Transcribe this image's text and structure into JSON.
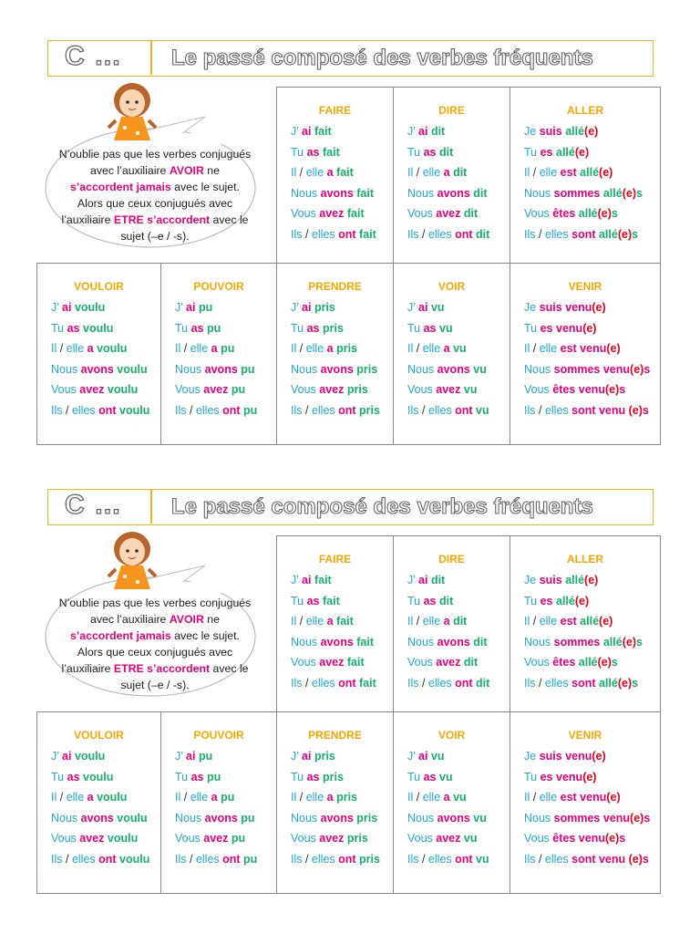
{
  "header": {
    "letter": "C …",
    "title": "Le passé composé des verbes fréquents"
  },
  "note": [
    [
      "N’oublie pas que les verbes conjugués avec l’auxiliaire ",
      "t"
    ],
    [
      "AVOIR",
      "a"
    ],
    [
      " ne ",
      "t"
    ],
    [
      "s’accordent jamais",
      "a"
    ],
    [
      " avec le sujet. Alors que ceux conjugués avec l’auxiliaire ",
      "t"
    ],
    [
      "ETRE s’accordent",
      "a"
    ],
    [
      " avec le sujet (–e / -s).",
      "t"
    ]
  ],
  "verbs": [
    {
      "name": "FAIRE",
      "lines": [
        [
          [
            "J’ ",
            "p"
          ],
          [
            "ai ",
            "a"
          ],
          [
            "fait",
            "v"
          ]
        ],
        [
          [
            "Tu ",
            "p"
          ],
          [
            "as ",
            "a"
          ],
          [
            "fait",
            "v"
          ]
        ],
        [
          [
            "Il ",
            "p"
          ],
          [
            "/ ",
            "k"
          ],
          [
            "elle ",
            "p"
          ],
          [
            "a ",
            "a"
          ],
          [
            "fait",
            "v"
          ]
        ],
        [
          [
            "Nous ",
            "p"
          ],
          [
            "avons ",
            "a"
          ],
          [
            "fait",
            "v"
          ]
        ],
        [
          [
            "Vous ",
            "p"
          ],
          [
            "avez ",
            "a"
          ],
          [
            "fait",
            "v"
          ]
        ],
        [
          [
            "Ils ",
            "p"
          ],
          [
            "/ ",
            "k"
          ],
          [
            "elles ",
            "p"
          ],
          [
            "ont ",
            "a"
          ],
          [
            "fait",
            "v"
          ]
        ]
      ]
    },
    {
      "name": "DIRE",
      "lines": [
        [
          [
            "J’ ",
            "p"
          ],
          [
            "ai ",
            "a"
          ],
          [
            "dit",
            "v"
          ]
        ],
        [
          [
            "Tu ",
            "p"
          ],
          [
            "as ",
            "a"
          ],
          [
            "dit",
            "v"
          ]
        ],
        [
          [
            "Il ",
            "p"
          ],
          [
            "/ ",
            "k"
          ],
          [
            "elle ",
            "p"
          ],
          [
            "a ",
            "a"
          ],
          [
            "dit",
            "v"
          ]
        ],
        [
          [
            "Nous ",
            "p"
          ],
          [
            "avons ",
            "a"
          ],
          [
            "dit",
            "v"
          ]
        ],
        [
          [
            "Vous ",
            "p"
          ],
          [
            "avez ",
            "a"
          ],
          [
            "dit",
            "v"
          ]
        ],
        [
          [
            "Ils ",
            "p"
          ],
          [
            "/ ",
            "k"
          ],
          [
            "elles ",
            "p"
          ],
          [
            "ont ",
            "a"
          ],
          [
            "dit",
            "v"
          ]
        ]
      ]
    },
    {
      "name": "ALLER",
      "lines": [
        [
          [
            "Je ",
            "p"
          ],
          [
            "suis ",
            "a"
          ],
          [
            "allé",
            "v"
          ],
          [
            "(e)",
            "e"
          ]
        ],
        [
          [
            "Tu ",
            "p"
          ],
          [
            "es ",
            "a"
          ],
          [
            "allé",
            "v"
          ],
          [
            "(e)",
            "e"
          ]
        ],
        [
          [
            "Il ",
            "p"
          ],
          [
            "/ ",
            "k"
          ],
          [
            "elle ",
            "p"
          ],
          [
            "est ",
            "a"
          ],
          [
            "allé",
            "v"
          ],
          [
            "(e)",
            "e"
          ]
        ],
        [
          [
            "Nous ",
            "p"
          ],
          [
            "sommes ",
            "a"
          ],
          [
            "allé",
            "v"
          ],
          [
            "(e)",
            "e"
          ],
          [
            "s",
            "v"
          ]
        ],
        [
          [
            "Vous ",
            "p"
          ],
          [
            "êtes ",
            "a"
          ],
          [
            "allé",
            "v"
          ],
          [
            "(e)",
            "e"
          ],
          [
            "s",
            "v"
          ]
        ],
        [
          [
            "Ils ",
            "p"
          ],
          [
            "/ ",
            "k"
          ],
          [
            "elles ",
            "p"
          ],
          [
            "sont ",
            "a"
          ],
          [
            "allé",
            "v"
          ],
          [
            "(e)",
            "e"
          ],
          [
            "s",
            "v"
          ]
        ]
      ]
    },
    {
      "name": "VOULOIR",
      "lines": [
        [
          [
            "J’ ",
            "p"
          ],
          [
            "ai ",
            "a"
          ],
          [
            "voulu",
            "v"
          ]
        ],
        [
          [
            "Tu ",
            "p"
          ],
          [
            "as ",
            "a"
          ],
          [
            "voulu",
            "v"
          ]
        ],
        [
          [
            "Il ",
            "p"
          ],
          [
            "/ ",
            "k"
          ],
          [
            "elle ",
            "p"
          ],
          [
            "a ",
            "a"
          ],
          [
            "voulu",
            "v"
          ]
        ],
        [
          [
            "Nous ",
            "p"
          ],
          [
            "avons ",
            "a"
          ],
          [
            "voulu",
            "v"
          ]
        ],
        [
          [
            "Vous ",
            "p"
          ],
          [
            "avez ",
            "a"
          ],
          [
            "voulu",
            "v"
          ]
        ],
        [
          [
            "Ils ",
            "p"
          ],
          [
            "/ ",
            "k"
          ],
          [
            "elles ",
            "p"
          ],
          [
            "ont ",
            "a"
          ],
          [
            "voulu",
            "v"
          ]
        ]
      ]
    },
    {
      "name": "POUVOIR",
      "lines": [
        [
          [
            "J’ ",
            "p"
          ],
          [
            "ai ",
            "a"
          ],
          [
            "pu",
            "v"
          ]
        ],
        [
          [
            "Tu ",
            "p"
          ],
          [
            "as ",
            "a"
          ],
          [
            "pu",
            "v"
          ]
        ],
        [
          [
            "Il ",
            "p"
          ],
          [
            "/ ",
            "k"
          ],
          [
            "elle ",
            "p"
          ],
          [
            "a ",
            "a"
          ],
          [
            "pu",
            "v"
          ]
        ],
        [
          [
            "Nous ",
            "p"
          ],
          [
            "avons ",
            "a"
          ],
          [
            "pu",
            "v"
          ]
        ],
        [
          [
            "Vous ",
            "p"
          ],
          [
            "avez ",
            "a"
          ],
          [
            "pu",
            "v"
          ]
        ],
        [
          [
            "Ils ",
            "p"
          ],
          [
            "/ ",
            "k"
          ],
          [
            "elles ",
            "p"
          ],
          [
            "ont ",
            "a"
          ],
          [
            "pu",
            "v"
          ]
        ]
      ]
    },
    {
      "name": "PRENDRE",
      "lines": [
        [
          [
            "J’ ",
            "p"
          ],
          [
            "ai ",
            "a"
          ],
          [
            "pris",
            "v"
          ]
        ],
        [
          [
            "Tu ",
            "p"
          ],
          [
            "as ",
            "a"
          ],
          [
            "pris",
            "v"
          ]
        ],
        [
          [
            "Il ",
            "p"
          ],
          [
            "/ ",
            "k"
          ],
          [
            "elle ",
            "p"
          ],
          [
            "a ",
            "a"
          ],
          [
            "pris",
            "v"
          ]
        ],
        [
          [
            "Nous ",
            "p"
          ],
          [
            "avons ",
            "a"
          ],
          [
            "pris",
            "v"
          ]
        ],
        [
          [
            "Vous ",
            "p"
          ],
          [
            "avez ",
            "a"
          ],
          [
            "pris",
            "v"
          ]
        ],
        [
          [
            "Ils ",
            "p"
          ],
          [
            "/ ",
            "k"
          ],
          [
            "elles ",
            "p"
          ],
          [
            "ont ",
            "a"
          ],
          [
            "pris",
            "v"
          ]
        ]
      ]
    },
    {
      "name": "VOIR",
      "lines": [
        [
          [
            "J’ ",
            "p"
          ],
          [
            "ai ",
            "a"
          ],
          [
            "vu",
            "v"
          ]
        ],
        [
          [
            "Tu ",
            "p"
          ],
          [
            "as ",
            "a"
          ],
          [
            "vu",
            "v"
          ]
        ],
        [
          [
            "Il ",
            "p"
          ],
          [
            "/ ",
            "k"
          ],
          [
            "elle ",
            "p"
          ],
          [
            "a ",
            "a"
          ],
          [
            "vu",
            "v"
          ]
        ],
        [
          [
            "Nous ",
            "p"
          ],
          [
            "avons ",
            "a"
          ],
          [
            "vu",
            "v"
          ]
        ],
        [
          [
            "Vous ",
            "p"
          ],
          [
            "avez ",
            "a"
          ],
          [
            "vu",
            "v"
          ]
        ],
        [
          [
            "Ils ",
            "p"
          ],
          [
            "/ ",
            "k"
          ],
          [
            "elles ",
            "p"
          ],
          [
            "ont ",
            "a"
          ],
          [
            "vu",
            "v"
          ]
        ]
      ]
    },
    {
      "name": "VENIR",
      "lines": [
        [
          [
            "Je ",
            "p"
          ],
          [
            "suis ",
            "a"
          ],
          [
            "venu",
            "a"
          ],
          [
            "(e)",
            "e"
          ]
        ],
        [
          [
            "Tu ",
            "p"
          ],
          [
            "es ",
            "a"
          ],
          [
            "venu",
            "a"
          ],
          [
            "(e)",
            "e"
          ]
        ],
        [
          [
            "Il ",
            "p"
          ],
          [
            "/ ",
            "k"
          ],
          [
            "elle ",
            "p"
          ],
          [
            "est ",
            "a"
          ],
          [
            "venu",
            "a"
          ],
          [
            "(e)",
            "e"
          ]
        ],
        [
          [
            "Nous ",
            "p"
          ],
          [
            "sommes ",
            "a"
          ],
          [
            "venu",
            "a"
          ],
          [
            "(e)",
            "e"
          ],
          [
            "s",
            "a"
          ]
        ],
        [
          [
            "Vous ",
            "p"
          ],
          [
            "êtes ",
            "a"
          ],
          [
            "venu",
            "a"
          ],
          [
            "(e)",
            "e"
          ],
          [
            "s",
            "a"
          ]
        ],
        [
          [
            "Ils ",
            "p"
          ],
          [
            "/ ",
            "k"
          ],
          [
            "elles ",
            "p"
          ],
          [
            "sont ",
            "a"
          ],
          [
            "venu ",
            "a"
          ],
          [
            "(e)",
            "e"
          ],
          [
            "s",
            "a"
          ]
        ]
      ]
    }
  ]
}
